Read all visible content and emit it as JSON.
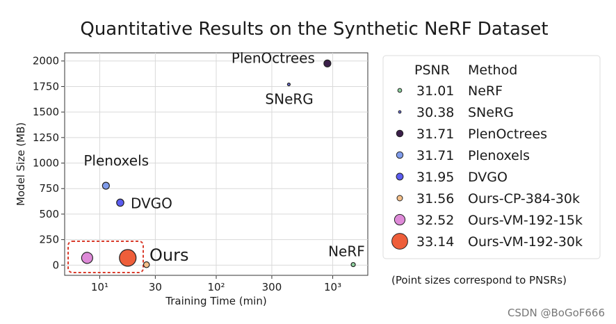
{
  "chart_data": {
    "type": "scatter",
    "title": "Quantitative Results on the Synthetic NeRF Dataset",
    "xlabel": "Training Time (min)",
    "ylabel": "Model Size (MB)",
    "xscale": "log",
    "xlim": [
      5,
      2000
    ],
    "ylim": [
      -100,
      2080
    ],
    "xticks": [
      {
        "value": 10,
        "label": "10¹"
      },
      {
        "value": 30,
        "label": "30"
      },
      {
        "value": 100,
        "label": "10²"
      },
      {
        "value": 300,
        "label": "300"
      },
      {
        "value": 1000,
        "label": "10³"
      }
    ],
    "yticks": [
      0,
      250,
      500,
      750,
      1000,
      1250,
      1500,
      1750,
      2000
    ],
    "grid": true,
    "legend_placement": "right",
    "legend_header": {
      "psnr": "PSNR",
      "method": "Method"
    },
    "points": [
      {
        "method": "NeRF",
        "psnr": "31.01",
        "x": 1500,
        "y": 5,
        "color": "#8fd19e",
        "label": "NeRF"
      },
      {
        "method": "SNeRG",
        "psnr": "30.38",
        "x": 420,
        "y": 1771,
        "color": "#6a6fd6",
        "label": "SNeRG"
      },
      {
        "method": "PlenOctrees",
        "psnr": "31.71",
        "x": 900,
        "y": 1976,
        "color": "#3b1f4a",
        "label": "PlenOctrees"
      },
      {
        "method": "Plenoxels",
        "psnr": "31.71",
        "x": 11.3,
        "y": 778,
        "color": "#7f9bea",
        "label": "Plenoxels"
      },
      {
        "method": "DVGO",
        "psnr": "31.95",
        "x": 15.0,
        "y": 612,
        "color": "#5b5cf0",
        "label": "DVGO"
      },
      {
        "method": "Ours-CP-384-30k",
        "psnr": "31.56",
        "x": 25.2,
        "y": 4,
        "color": "#f5c08a",
        "label": ""
      },
      {
        "method": "Ours-VM-192-15k",
        "psnr": "32.52",
        "x": 7.8,
        "y": 71,
        "color": "#de8ad8",
        "label": ""
      },
      {
        "method": "Ours-VM-192-30k",
        "psnr": "33.14",
        "x": 17.4,
        "y": 71,
        "color": "#ee5e3a",
        "label": ""
      }
    ],
    "ours_annotation": "Ours",
    "size_note": "(Point sizes correspond to PNSRs)"
  },
  "watermark": "CSDN @BoGoF666"
}
